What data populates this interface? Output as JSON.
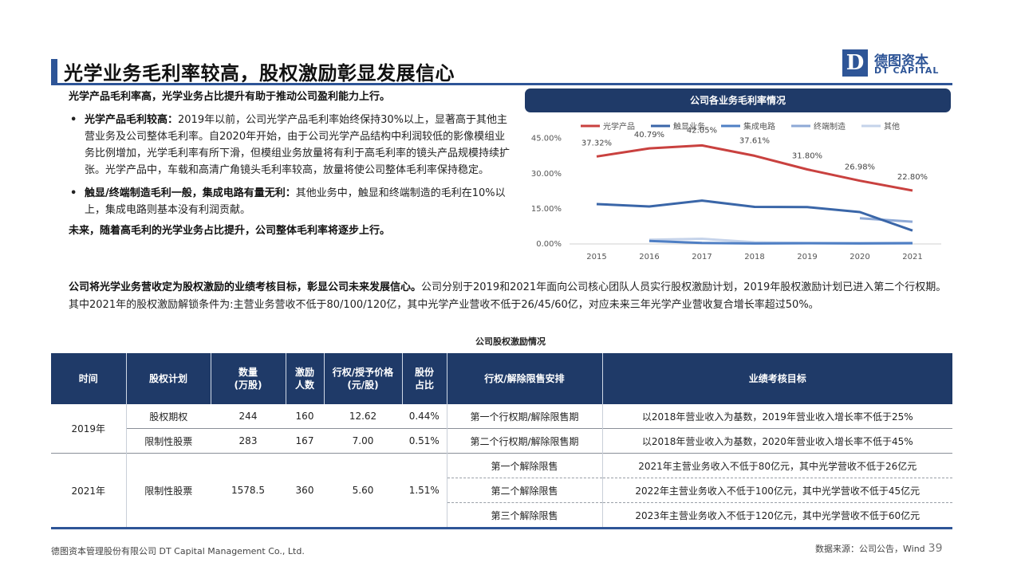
{
  "header": {
    "title": "光学业务毛利率较高，股权激励彰显发展信心",
    "logo_mark": "D",
    "logo_cn": "德图资本",
    "logo_en": "DT CAPITAL"
  },
  "body": {
    "lead": "光学产品毛利率高，光学业务占比提升有助于推动公司盈利能力上行。",
    "bullets": [
      {
        "dot": "•",
        "bold": "光学产品毛利较高：",
        "text": "2019年以前，公司光学产品毛利率始终保持30%以上，显著高于其他主营业务及公司整体毛利率。自2020年开始，由于公司光学产品结构中利润较低的影像模组业务比例增加，光学毛利率有所下滑，但模组业务放量将有利于高毛利率的镜头产品规模持续扩张。光学产品中，车载和高清广角镜头毛利率较高，放量将使公司整体毛利率保持稳定。"
      },
      {
        "dot": "•",
        "bold": "触显/终端制造毛利一般，集成电路有量无利：",
        "text": "其他业务中，触显和终端制造的毛利在10%以上，集成电路则基本没有利润贡献。"
      }
    ],
    "conclusion": "未来，随着高毛利的光学业务占比提升，公司整体毛利率将逐步上行。",
    "para_bold": "公司将光学业务营收定为股权激励的业绩考核目标，彰显公司未来发展信心。",
    "para_text": "公司分别于2019和2021年面向公司核心团队人员实行股权激励计划，2019年股权激励计划已进入第二个行权期。其中2021年的股权激励解锁条件为:主营业务营收不低于80/100/120亿，其中光学产业营收不低于26/45/60亿，对应未来三年光学产业营收复合增长率超过50%。"
  },
  "chart_data": {
    "type": "line",
    "title": "公司各业务毛利率情况",
    "categories": [
      "2015",
      "2016",
      "2017",
      "2018",
      "2019",
      "2020",
      "2021"
    ],
    "y_ticks": [
      "0.00%",
      "15.00%",
      "30.00%",
      "45.00%"
    ],
    "ylim": [
      0,
      0.5
    ],
    "legend_position": "top",
    "grid": false,
    "series": [
      {
        "name": "光学产品",
        "color": "#c9413f",
        "values": [
          0.3732,
          0.4079,
          0.4205,
          0.3761,
          0.318,
          0.2698,
          0.228
        ],
        "labels": [
          "37.32%",
          "40.79%",
          "42.05%",
          "37.61%",
          "31.80%",
          "26.98%",
          "22.80%"
        ]
      },
      {
        "name": "触显业务",
        "color": "#3a66a8",
        "values": [
          0.17,
          0.16,
          0.185,
          0.158,
          0.157,
          0.136,
          0.057
        ],
        "labels": []
      },
      {
        "name": "集成电路",
        "color": "#4f7fc4",
        "values": [
          null,
          0.013,
          0.004,
          0.002,
          0.003,
          0.002,
          0.003
        ],
        "labels": []
      },
      {
        "name": "终端制造",
        "color": "#8ea9d6",
        "values": [
          null,
          null,
          null,
          null,
          null,
          0.11,
          0.095
        ],
        "labels": []
      },
      {
        "name": "其他",
        "color": "#c5d3ea",
        "values": [
          null,
          0.018,
          0.022,
          0.007,
          0.004,
          0.004,
          0.005
        ],
        "labels": []
      }
    ]
  },
  "table": {
    "caption": "公司股权激励情况",
    "headers": [
      "时间",
      "股权计划",
      "数量\n(万股)",
      "激励\n人数",
      "行权/授予价格\n(元/股)",
      "股份\n占比",
      "行权/解除限售安排",
      "业绩考核目标"
    ],
    "y2019": "2019年",
    "rows2019": [
      {
        "plan": "股权期权",
        "qty": "244",
        "people": "160",
        "price": "12.62",
        "share": "0.44%",
        "arrangement": "第一个行权期/解除限售期",
        "target": "以2018年营业收入为基数，2019年营业收入增长率不低于25%"
      },
      {
        "plan": "限制性股票",
        "qty": "283",
        "people": "167",
        "price": "7.00",
        "share": "0.51%",
        "arrangement": "第二个行权期/解除限售期",
        "target": "以2018年营业收入为基数，2020年营业收入增长率不低于45%"
      }
    ],
    "y2021": "2021年",
    "row2021": {
      "plan": "限制性股票",
      "qty": "1578.5",
      "people": "360",
      "price": "5.60",
      "share": "1.51%"
    },
    "rows2021": [
      {
        "arrangement": "第一个解除限售",
        "target": "2021年主营业务收入不低于80亿元，其中光学营收不低于26亿元"
      },
      {
        "arrangement": "第二个解除限售",
        "target": "2022年主营业务收入不低于100亿元，其中光学营收不低于45亿元"
      },
      {
        "arrangement": "第三个解除限售",
        "target": "2023年主营业务收入不低于120亿元，其中光学营收不低于60亿元"
      }
    ]
  },
  "footer": {
    "company": "德图资本管理股份有限公司  DT Capital Management Co., Ltd.",
    "source": "数据来源：公司公告，Wind",
    "page": "39"
  },
  "colors": {
    "brand": "#2e5597",
    "header_dark": "#1f3a68"
  }
}
